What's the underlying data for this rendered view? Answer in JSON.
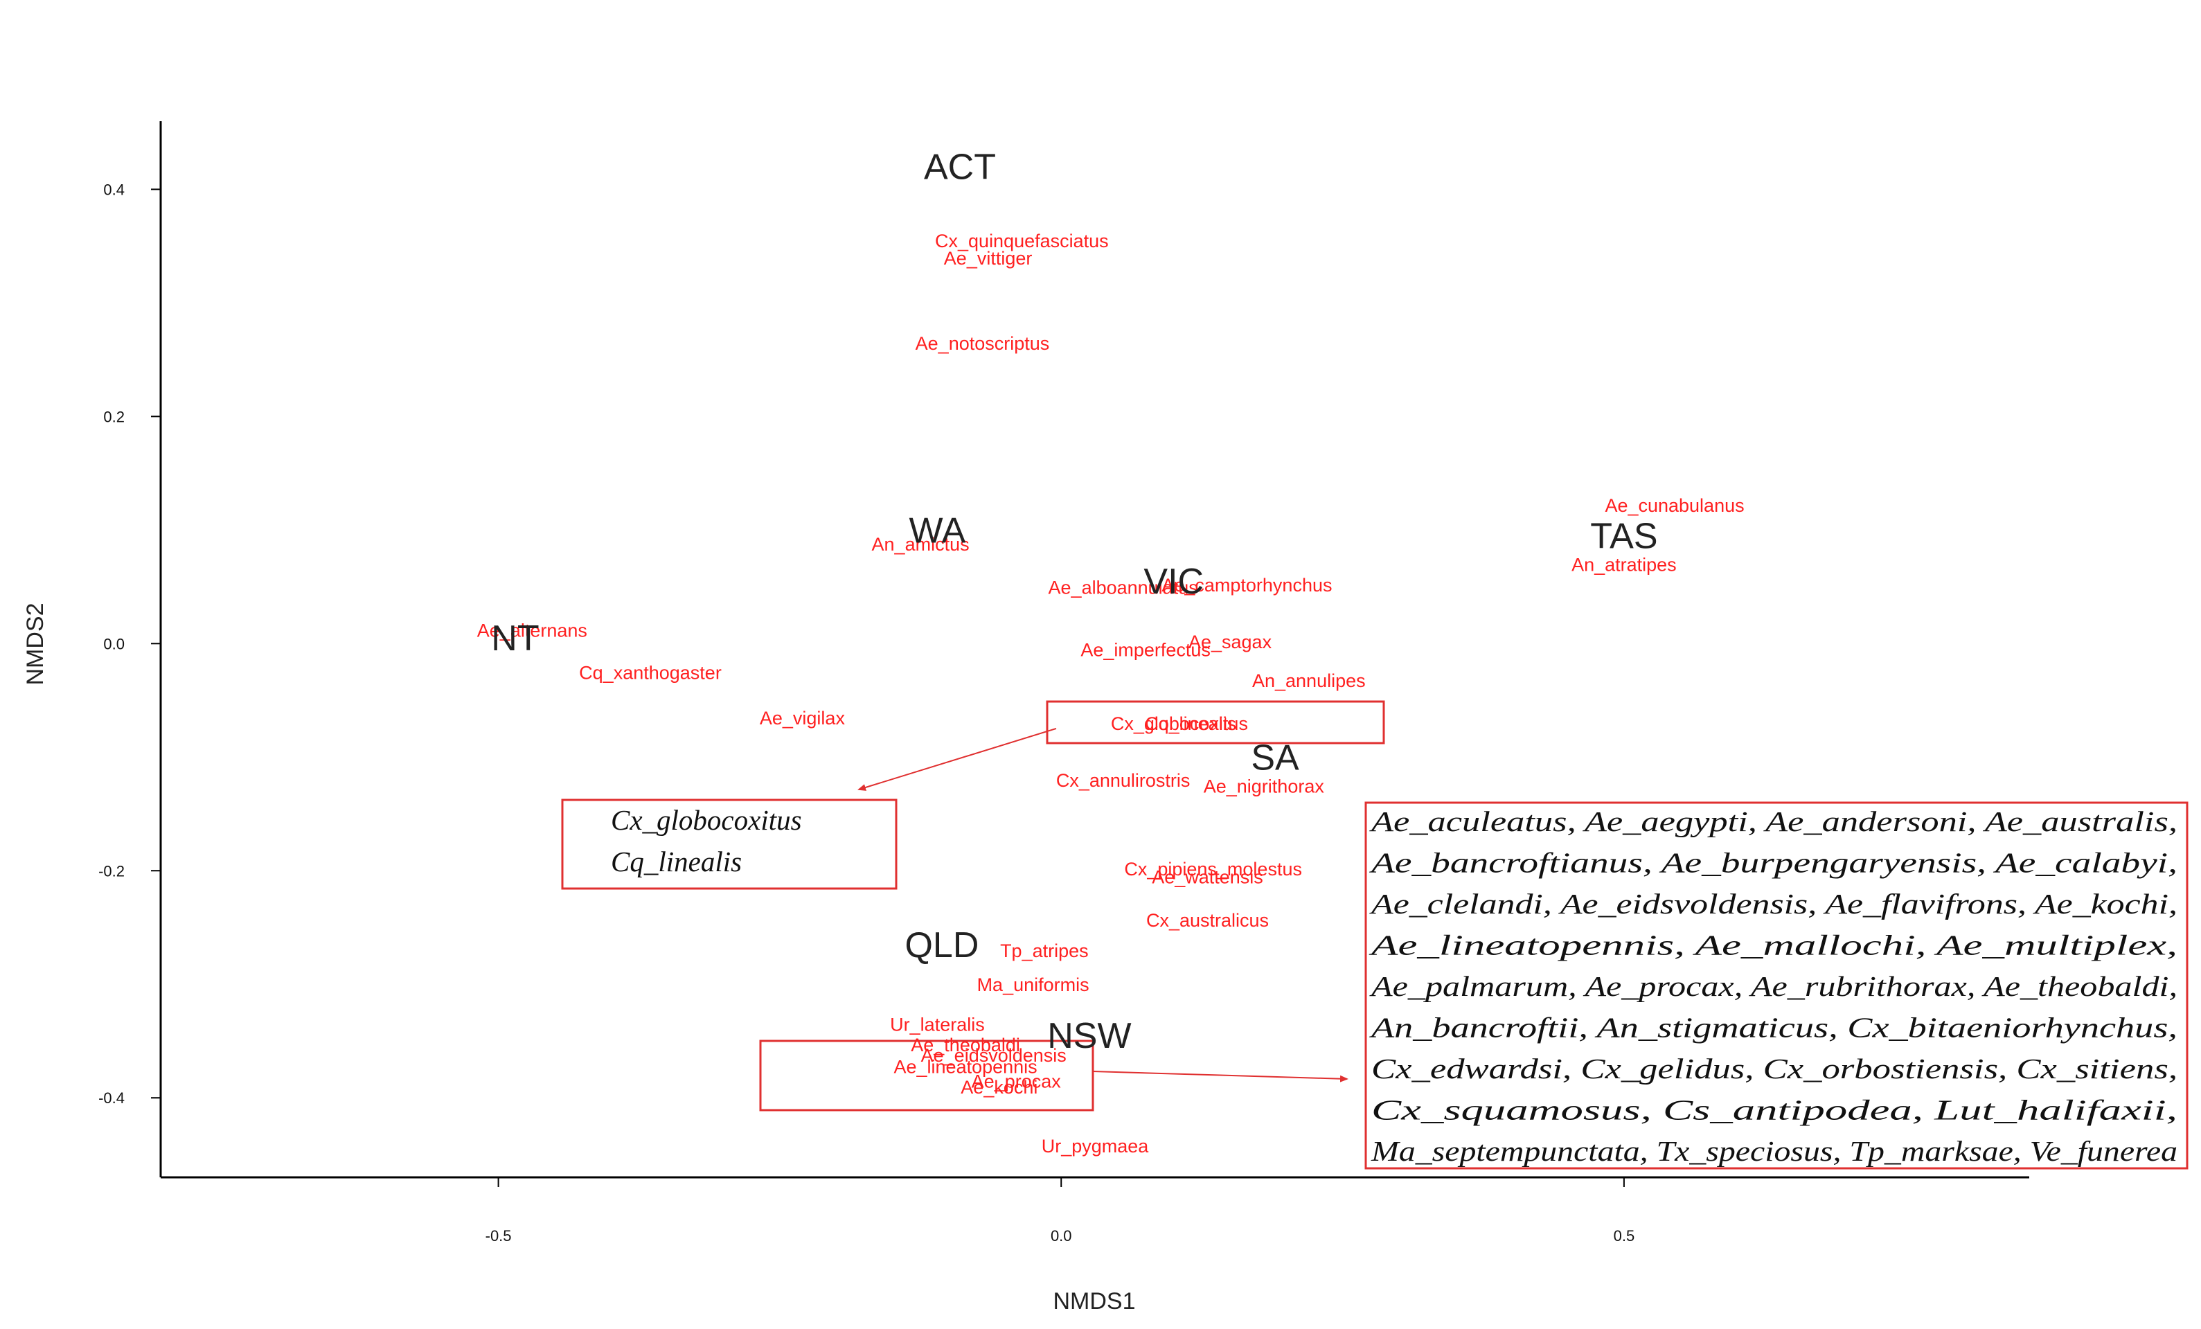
{
  "chart_data": {
    "type": "scatter",
    "title": "",
    "xlabel": "NMDS1",
    "ylabel": "NMDS2",
    "xlim": [
      -0.8,
      0.86
    ],
    "ylim": [
      -0.47,
      0.46
    ],
    "x_ticks": [
      -0.5,
      0.0,
      0.5
    ],
    "y_ticks": [
      -0.4,
      -0.2,
      0.0,
      0.2,
      0.4
    ],
    "x_tick_labels": [
      "-0.5",
      "0.0",
      "0.5"
    ],
    "y_tick_labels": [
      "-0.4",
      "-0.2",
      "0.0",
      "0.2",
      "0.4"
    ],
    "grid": false,
    "regions": [
      {
        "label": "ACT",
        "x": -0.09,
        "y": 0.42
      },
      {
        "label": "WA",
        "x": -0.11,
        "y": 0.1
      },
      {
        "label": "VIC",
        "x": 0.1,
        "y": 0.055
      },
      {
        "label": "TAS",
        "x": 0.5,
        "y": 0.095
      },
      {
        "label": "NT",
        "x": -0.485,
        "y": 0.005
      },
      {
        "label": "SA",
        "x": 0.19,
        "y": -0.1
      },
      {
        "label": "QLD",
        "x": -0.106,
        "y": -0.265
      },
      {
        "label": "NSW",
        "x": 0.025,
        "y": -0.345
      }
    ],
    "species_labels": [
      {
        "label": "Cx_quinquefasciatus",
        "x": -0.035,
        "y": 0.355
      },
      {
        "label": "Ae_vittiger",
        "x": -0.065,
        "y": 0.34
      },
      {
        "label": "Ae_notoscriptus",
        "x": -0.07,
        "y": 0.265
      },
      {
        "label": "Ae_cunabulanus",
        "x": 0.545,
        "y": 0.122
      },
      {
        "label": "An_amictus",
        "x": -0.125,
        "y": 0.088
      },
      {
        "label": "An_atratipes",
        "x": 0.5,
        "y": 0.07
      },
      {
        "label": "Ae_alboannulatus",
        "x": 0.055,
        "y": 0.05
      },
      {
        "label": "Ae_camptorhynchus",
        "x": 0.165,
        "y": 0.052
      },
      {
        "label": "Ae_alternans",
        "x": -0.47,
        "y": 0.012
      },
      {
        "label": "Ae_sagax",
        "x": 0.15,
        "y": 0.002
      },
      {
        "label": "Ae_imperfectus",
        "x": 0.075,
        "y": -0.005
      },
      {
        "label": "Cq_xanthogaster",
        "x": -0.365,
        "y": -0.025
      },
      {
        "label": "An_annulipes",
        "x": 0.22,
        "y": -0.032
      },
      {
        "label": "Ae_vigilax",
        "x": -0.23,
        "y": -0.065
      },
      {
        "label": "Cx_globocoxitus",
        "x": 0.105,
        "y": -0.07
      },
      {
        "label": "Cq_linealis",
        "x": 0.115,
        "y": -0.07
      },
      {
        "label": "Cx_annulirostris",
        "x": 0.055,
        "y": -0.12
      },
      {
        "label": "Ae_nigrithorax",
        "x": 0.18,
        "y": -0.125
      },
      {
        "label": "Cx_pipiens_molestus",
        "x": 0.135,
        "y": -0.198
      },
      {
        "label": "Ae_wattensis",
        "x": 0.13,
        "y": -0.205
      },
      {
        "label": "Cx_australicus",
        "x": 0.13,
        "y": -0.243
      },
      {
        "label": "Tp_atripes",
        "x": -0.015,
        "y": -0.27
      },
      {
        "label": "Ma_uniformis",
        "x": -0.025,
        "y": -0.3
      },
      {
        "label": "Ur_lateralis",
        "x": -0.11,
        "y": -0.335
      },
      {
        "label": "Ae_theobaldi",
        "x": -0.085,
        "y": -0.353
      },
      {
        "label": "Ae_eidsvoldensis",
        "x": -0.06,
        "y": -0.362
      },
      {
        "label": "Ae_lineatopennis",
        "x": -0.085,
        "y": -0.372
      },
      {
        "label": "Ae_procax",
        "x": -0.04,
        "y": -0.385
      },
      {
        "label": "Ae_kochi",
        "x": -0.055,
        "y": -0.39
      },
      {
        "label": "Ur_pygmaea",
        "x": 0.03,
        "y": -0.442
      }
    ],
    "legend_boxes": [
      {
        "lines": [
          "Cx_globocoxitus",
          "Cq_linealis"
        ]
      },
      {
        "lines": [
          "Ae_aculeatus, Ae_aegypti, Ae_andersoni, Ae_australis,",
          "Ae_bancroftianus, Ae_burpengaryensis, Ae_calabyi,",
          "Ae_clelandi, Ae_eidsvoldensis, Ae_flavifrons, Ae_kochi,",
          "Ae_lineatopennis, Ae_mallochi, Ae_multiplex,",
          "Ae_palmarum, Ae_procax, Ae_rubrithorax, Ae_theobaldi,",
          "An_bancroftii, An_stigmaticus, Cx_bitaeniorhynchus,",
          "Cx_edwardsi, Cx_gelidus, Cx_orbostiensis, Cx_sitiens,",
          "Cx_squamosus, Cs_antipodea, Lut_halifaxii,",
          "Ma_septempunctata, Tx_speciosus, Tp_marksae, Ve_funerea"
        ]
      }
    ],
    "colors": {
      "species": "#ff2020",
      "region": "#222222",
      "box": "#e03030",
      "axis": "#000000"
    }
  }
}
